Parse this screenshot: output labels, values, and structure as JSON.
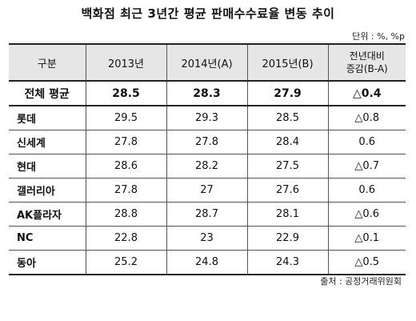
{
  "title": "백화점 최근 3년간 평균 판매수수료율 변동 추이",
  "unit": "단위 : %, %p",
  "headers": {
    "category": "구분",
    "y2013": "2013년",
    "y2014": "2014년(A)",
    "y2015": "2015년(B)",
    "change_line1": "전년대비",
    "change_line2": "증감(B-A)"
  },
  "rows": [
    {
      "name": "전체 평균",
      "y2013": "28.5",
      "y2014": "28.3",
      "y2015": "27.9",
      "change": "△0.4"
    },
    {
      "name": "롯데",
      "y2013": "29.5",
      "y2014": "29.3",
      "y2015": "28.5",
      "change": "△0.8"
    },
    {
      "name": "신세계",
      "y2013": "27.8",
      "y2014": "27.8",
      "y2015": "28.4",
      "change": "0.6"
    },
    {
      "name": "현대",
      "y2013": "28.6",
      "y2014": "28.2",
      "y2015": "27.5",
      "change": "△0.7"
    },
    {
      "name": "갤러리아",
      "y2013": "27.8",
      "y2014": "27",
      "y2015": "27.6",
      "change": "0.6"
    },
    {
      "name": "AK플라자",
      "y2013": "28.8",
      "y2014": "28.7",
      "y2015": "28.1",
      "change": "△0.6"
    },
    {
      "name": "NC",
      "y2013": "22.8",
      "y2014": "23",
      "y2015": "22.9",
      "change": "△0.1"
    },
    {
      "name": "동아",
      "y2013": "25.2",
      "y2014": "24.8",
      "y2015": "24.3",
      "change": "△0.5"
    }
  ],
  "source": "출처 : 공정거래위원회"
}
